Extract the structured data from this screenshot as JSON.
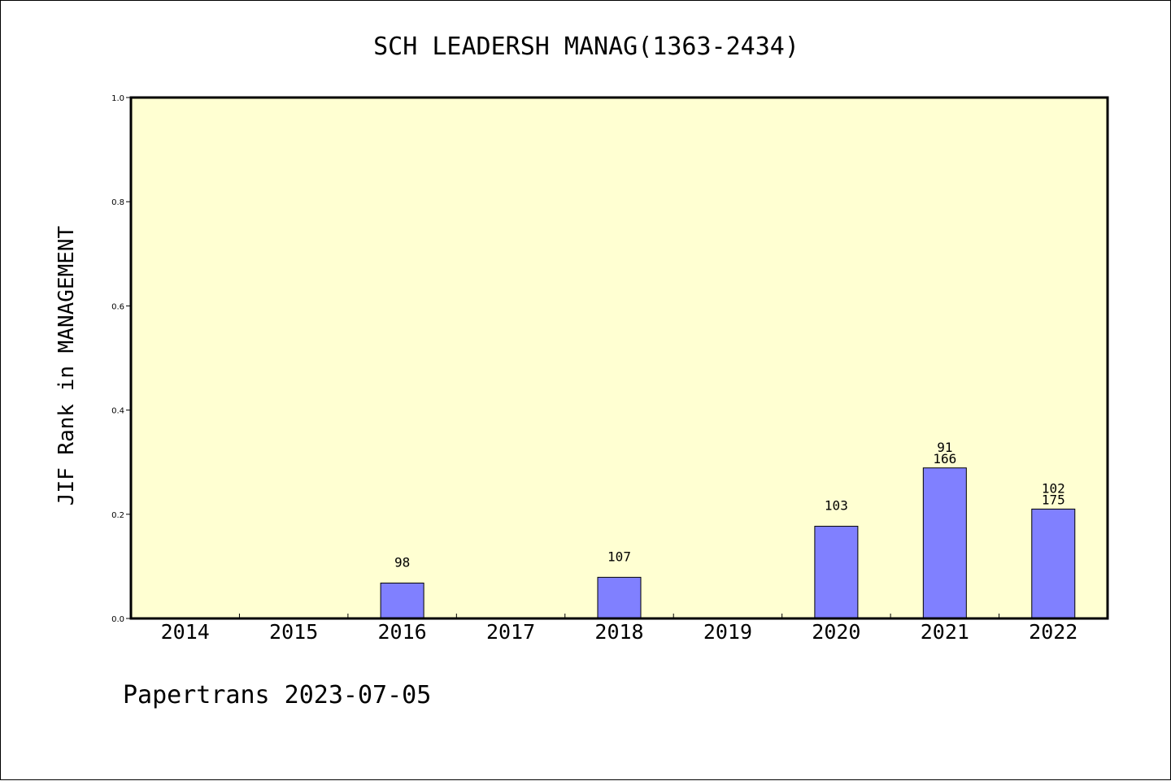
{
  "chart_data": {
    "type": "bar",
    "title": "SCH LEADERSH MANAG(1363-2434)",
    "xlabel": "",
    "ylabel": "JIF Rank in MANAGEMENT",
    "ylim": [
      0.0,
      1.0
    ],
    "yticks": [
      "0.0",
      "0.2",
      "0.4",
      "0.6",
      "0.8",
      "1.0"
    ],
    "categories": [
      "2014",
      "2015",
      "2016",
      "2017",
      "2018",
      "2019",
      "2020",
      "2021",
      "2022"
    ],
    "values": [
      null,
      null,
      0.068,
      null,
      0.079,
      null,
      0.177,
      0.289,
      0.21
    ],
    "labels": [
      [],
      [],
      [
        "98"
      ],
      [],
      [
        "107"
      ],
      [],
      [
        "103"
      ],
      [
        "91",
        "166"
      ],
      [
        "102",
        "175"
      ]
    ],
    "grid": false,
    "colors": {
      "plot_background": "#ffffd2",
      "bar_fill": "#8080ff",
      "bar_stroke": "#000000"
    }
  },
  "footer": "Papertrans 2023-07-05"
}
